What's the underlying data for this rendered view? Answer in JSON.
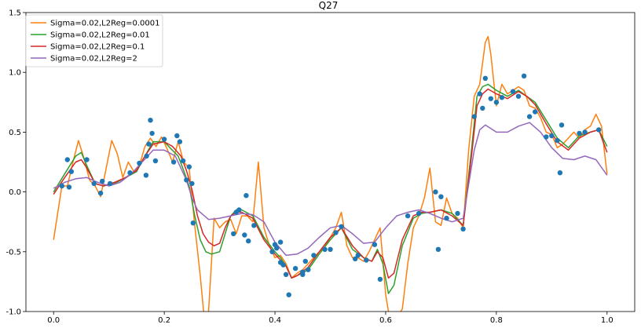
{
  "chart_data": {
    "type": "line",
    "title": "Q27",
    "xlabel": "",
    "ylabel": "",
    "xlim": [
      -0.05,
      1.05
    ],
    "ylim": [
      -1.0,
      1.5
    ],
    "xticks": [
      0.0,
      0.2,
      0.4,
      0.6,
      0.8,
      1.0
    ],
    "xtick_labels": [
      "0.0",
      "0.2",
      "0.4",
      "0.6",
      "0.8",
      "1.0"
    ],
    "yticks": [
      -1.0,
      -0.5,
      0.0,
      0.5,
      1.0,
      1.5
    ],
    "ytick_labels": [
      "-1.0",
      "-0.5",
      "0.0",
      "0.5",
      "1.0",
      "1.5"
    ],
    "grid": false,
    "legend_position": "upper-left",
    "scatter": {
      "color": "#1f77b4",
      "x": [
        0.015,
        0.025,
        0.028,
        0.032,
        0.06,
        0.073,
        0.085,
        0.088,
        0.102,
        0.138,
        0.155,
        0.167,
        0.168,
        0.172,
        0.175,
        0.178,
        0.184,
        0.2,
        0.217,
        0.223,
        0.228,
        0.234,
        0.24,
        0.245,
        0.25,
        0.252,
        0.325,
        0.33,
        0.335,
        0.345,
        0.348,
        0.352,
        0.362,
        0.395,
        0.4,
        0.403,
        0.41,
        0.41,
        0.415,
        0.42,
        0.425,
        0.437,
        0.45,
        0.45,
        0.455,
        0.46,
        0.47,
        0.49,
        0.5,
        0.51,
        0.52,
        0.545,
        0.55,
        0.565,
        0.58,
        0.59,
        0.64,
        0.66,
        0.69,
        0.695,
        0.7,
        0.71,
        0.73,
        0.74,
        0.76,
        0.77,
        0.775,
        0.78,
        0.79,
        0.8,
        0.81,
        0.83,
        0.84,
        0.85,
        0.86,
        0.87,
        0.89,
        0.9,
        0.91,
        0.915,
        0.918,
        0.95,
        0.96,
        0.985
      ],
      "y": [
        0.05,
        0.27,
        0.04,
        0.17,
        0.27,
        0.07,
        -0.01,
        0.09,
        0.07,
        0.16,
        0.24,
        0.14,
        0.3,
        0.4,
        0.6,
        0.49,
        0.26,
        0.44,
        0.25,
        0.47,
        0.42,
        0.26,
        0.1,
        0.21,
        0.07,
        -0.26,
        -0.35,
        -0.17,
        -0.15,
        -0.36,
        -0.03,
        -0.41,
        -0.28,
        -0.5,
        -0.44,
        -0.47,
        -0.59,
        -0.42,
        -0.61,
        -0.69,
        -0.86,
        -0.64,
        -0.69,
        -0.67,
        -0.58,
        -0.65,
        -0.53,
        -0.48,
        -0.48,
        -0.34,
        -0.29,
        -0.56,
        -0.53,
        -0.57,
        -0.44,
        -0.73,
        -0.2,
        -0.18,
        0.0,
        -0.48,
        -0.04,
        -0.22,
        -0.18,
        -0.31,
        0.63,
        0.82,
        0.7,
        0.95,
        0.78,
        0.75,
        0.79,
        0.84,
        0.8,
        0.97,
        0.63,
        0.67,
        0.46,
        0.47,
        0.43,
        0.16,
        0.56,
        0.49,
        0.5,
        0.52
      ]
    },
    "series": [
      {
        "name": "Sigma=0.02,L2Reg=0.0001",
        "color": "#ff7f0e",
        "x": [
          0.0,
          0.015,
          0.025,
          0.035,
          0.045,
          0.055,
          0.065,
          0.075,
          0.085,
          0.095,
          0.105,
          0.115,
          0.125,
          0.135,
          0.145,
          0.155,
          0.165,
          0.175,
          0.185,
          0.195,
          0.205,
          0.215,
          0.225,
          0.235,
          0.245,
          0.255,
          0.265,
          0.272,
          0.28,
          0.29,
          0.3,
          0.31,
          0.32,
          0.33,
          0.34,
          0.35,
          0.36,
          0.37,
          0.38,
          0.39,
          0.4,
          0.41,
          0.42,
          0.43,
          0.44,
          0.45,
          0.46,
          0.47,
          0.48,
          0.49,
          0.5,
          0.51,
          0.52,
          0.53,
          0.54,
          0.55,
          0.56,
          0.57,
          0.58,
          0.59,
          0.6,
          0.605,
          0.61,
          0.62,
          0.63,
          0.64,
          0.65,
          0.66,
          0.67,
          0.68,
          0.69,
          0.7,
          0.71,
          0.72,
          0.73,
          0.74,
          0.75,
          0.76,
          0.77,
          0.78,
          0.785,
          0.79,
          0.8,
          0.81,
          0.82,
          0.83,
          0.84,
          0.85,
          0.86,
          0.87,
          0.88,
          0.89,
          0.9,
          0.91,
          0.92,
          0.93,
          0.94,
          0.95,
          0.96,
          0.97,
          0.98,
          0.99,
          1.0
        ],
        "y": [
          -0.4,
          0.05,
          0.05,
          0.25,
          0.43,
          0.28,
          0.1,
          0.05,
          -0.04,
          0.2,
          0.43,
          0.32,
          0.12,
          0.25,
          0.17,
          0.22,
          0.38,
          0.45,
          0.38,
          0.46,
          0.36,
          0.25,
          0.42,
          0.25,
          0.2,
          -0.28,
          -0.7,
          -1.05,
          -1.0,
          -0.22,
          -0.3,
          -0.25,
          -0.23,
          -0.35,
          -0.2,
          -0.2,
          -0.25,
          0.25,
          -0.3,
          -0.45,
          -0.55,
          -0.53,
          -0.6,
          -0.72,
          -0.68,
          -0.65,
          -0.6,
          -0.55,
          -0.5,
          -0.46,
          -0.38,
          -0.3,
          -0.17,
          -0.45,
          -0.55,
          -0.55,
          -0.58,
          -0.5,
          -0.4,
          -0.3,
          -0.86,
          -1.0,
          -1.05,
          -1.05,
          -0.98,
          -0.6,
          -0.3,
          -0.2,
          -0.05,
          0.2,
          -0.25,
          -0.28,
          -0.05,
          -0.18,
          -0.22,
          -0.3,
          0.35,
          0.8,
          0.9,
          1.25,
          1.3,
          1.15,
          0.72,
          0.9,
          0.82,
          0.85,
          0.88,
          0.85,
          0.72,
          0.7,
          0.62,
          0.5,
          0.48,
          0.37,
          0.4,
          0.45,
          0.5,
          0.45,
          0.52,
          0.55,
          0.65,
          0.55,
          0.15
        ]
      },
      {
        "name": "Sigma=0.02,L2Reg=0.01",
        "color": "#2ca02c",
        "x": [
          0.0,
          0.02,
          0.04,
          0.05,
          0.06,
          0.075,
          0.09,
          0.11,
          0.13,
          0.15,
          0.165,
          0.18,
          0.2,
          0.21,
          0.225,
          0.235,
          0.245,
          0.255,
          0.265,
          0.275,
          0.285,
          0.3,
          0.31,
          0.32,
          0.33,
          0.34,
          0.36,
          0.38,
          0.4,
          0.41,
          0.42,
          0.43,
          0.44,
          0.46,
          0.48,
          0.5,
          0.52,
          0.54,
          0.56,
          0.575,
          0.585,
          0.595,
          0.605,
          0.615,
          0.63,
          0.65,
          0.665,
          0.68,
          0.7,
          0.72,
          0.74,
          0.755,
          0.765,
          0.775,
          0.785,
          0.8,
          0.82,
          0.84,
          0.855,
          0.87,
          0.89,
          0.91,
          0.93,
          0.95,
          0.97,
          0.985,
          1.0
        ],
        "y": [
          0.0,
          0.15,
          0.3,
          0.33,
          0.22,
          0.07,
          0.05,
          0.07,
          0.12,
          0.17,
          0.3,
          0.42,
          0.42,
          0.37,
          0.3,
          0.18,
          0.05,
          -0.2,
          -0.4,
          -0.5,
          -0.52,
          -0.5,
          -0.35,
          -0.2,
          -0.15,
          -0.15,
          -0.2,
          -0.38,
          -0.5,
          -0.55,
          -0.62,
          -0.72,
          -0.7,
          -0.65,
          -0.52,
          -0.4,
          -0.3,
          -0.48,
          -0.55,
          -0.58,
          -0.48,
          -0.6,
          -0.85,
          -0.78,
          -0.45,
          -0.22,
          -0.18,
          -0.17,
          -0.15,
          -0.18,
          -0.28,
          0.35,
          0.8,
          0.88,
          0.9,
          0.85,
          0.8,
          0.85,
          0.8,
          0.75,
          0.6,
          0.45,
          0.37,
          0.47,
          0.5,
          0.52,
          0.38
        ]
      },
      {
        "name": "Sigma=0.02,L2Reg=0.1",
        "color": "#d62728",
        "x": [
          0.0,
          0.02,
          0.04,
          0.05,
          0.06,
          0.075,
          0.09,
          0.11,
          0.13,
          0.15,
          0.165,
          0.18,
          0.2,
          0.215,
          0.23,
          0.24,
          0.25,
          0.26,
          0.27,
          0.28,
          0.29,
          0.3,
          0.31,
          0.32,
          0.33,
          0.34,
          0.36,
          0.38,
          0.4,
          0.41,
          0.42,
          0.43,
          0.44,
          0.46,
          0.48,
          0.5,
          0.52,
          0.54,
          0.56,
          0.575,
          0.585,
          0.595,
          0.605,
          0.615,
          0.63,
          0.65,
          0.665,
          0.68,
          0.7,
          0.72,
          0.74,
          0.755,
          0.765,
          0.775,
          0.785,
          0.8,
          0.82,
          0.84,
          0.855,
          0.87,
          0.89,
          0.91,
          0.93,
          0.95,
          0.97,
          0.985,
          1.0
        ],
        "y": [
          -0.02,
          0.12,
          0.25,
          0.27,
          0.2,
          0.07,
          0.05,
          0.08,
          0.12,
          0.18,
          0.3,
          0.4,
          0.42,
          0.38,
          0.3,
          0.18,
          0.02,
          -0.2,
          -0.35,
          -0.42,
          -0.45,
          -0.43,
          -0.3,
          -0.2,
          -0.17,
          -0.17,
          -0.22,
          -0.4,
          -0.52,
          -0.57,
          -0.62,
          -0.72,
          -0.7,
          -0.63,
          -0.5,
          -0.38,
          -0.3,
          -0.45,
          -0.55,
          -0.58,
          -0.5,
          -0.55,
          -0.72,
          -0.68,
          -0.4,
          -0.2,
          -0.17,
          -0.17,
          -0.15,
          -0.2,
          -0.28,
          0.3,
          0.72,
          0.82,
          0.86,
          0.82,
          0.78,
          0.84,
          0.8,
          0.73,
          0.57,
          0.42,
          0.35,
          0.45,
          0.5,
          0.52,
          0.33
        ]
      },
      {
        "name": "Sigma=0.02,L2Reg=2",
        "color": "#9467bd",
        "x": [
          0.0,
          0.02,
          0.04,
          0.06,
          0.08,
          0.1,
          0.12,
          0.14,
          0.16,
          0.18,
          0.2,
          0.22,
          0.24,
          0.25,
          0.26,
          0.28,
          0.3,
          0.32,
          0.34,
          0.36,
          0.38,
          0.4,
          0.42,
          0.44,
          0.46,
          0.48,
          0.5,
          0.52,
          0.54,
          0.56,
          0.58,
          0.6,
          0.62,
          0.64,
          0.66,
          0.68,
          0.7,
          0.72,
          0.74,
          0.76,
          0.77,
          0.78,
          0.79,
          0.8,
          0.82,
          0.84,
          0.86,
          0.88,
          0.9,
          0.92,
          0.94,
          0.96,
          0.98,
          1.0
        ],
        "y": [
          0.03,
          0.08,
          0.11,
          0.12,
          0.08,
          0.05,
          0.08,
          0.15,
          0.25,
          0.35,
          0.35,
          0.3,
          0.1,
          -0.05,
          -0.15,
          -0.23,
          -0.22,
          -0.2,
          -0.18,
          -0.19,
          -0.25,
          -0.42,
          -0.53,
          -0.52,
          -0.47,
          -0.38,
          -0.3,
          -0.28,
          -0.35,
          -0.43,
          -0.42,
          -0.3,
          -0.2,
          -0.17,
          -0.15,
          -0.18,
          -0.22,
          -0.25,
          -0.22,
          0.35,
          0.52,
          0.56,
          0.53,
          0.5,
          0.5,
          0.55,
          0.58,
          0.5,
          0.37,
          0.28,
          0.27,
          0.3,
          0.27,
          0.14
        ]
      }
    ]
  }
}
